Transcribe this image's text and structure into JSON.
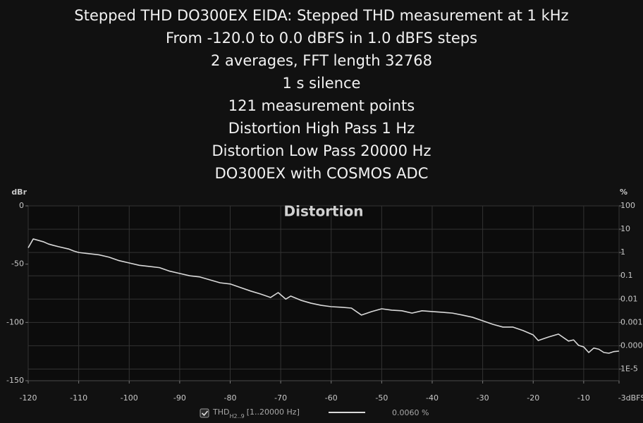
{
  "chart_data": {
    "type": "line",
    "title_lines": [
      "Stepped THD DO300EX EIDA: Stepped THD measurement at 1 kHz",
      "From -120.0 to 0.0 dBFS in 1.0 dBFS steps",
      "2 averages, FFT length 32768",
      "1 s silence",
      "121 measurement points",
      "Distortion High Pass 1 Hz",
      "Distortion Low Pass 20000 Hz",
      "DO300EX with COSMOS ADC"
    ],
    "plot_title": "Distortion",
    "y_label": "dBr",
    "y2_label": "%",
    "xlim": [
      -120,
      -3
    ],
    "xticks": [
      -120,
      -110,
      -100,
      -90,
      -80,
      -70,
      -60,
      -50,
      -40,
      -30,
      -20,
      -10,
      {
        "value": -3,
        "label": "-3dBFS"
      }
    ],
    "ylim": [
      -150,
      0
    ],
    "yticks": [
      -150,
      -100,
      -50,
      0
    ],
    "y2lim": [
      3.1623e-06,
      100
    ],
    "y2_log": true,
    "y2ticks": [
      100,
      10,
      1,
      0.1,
      0.01,
      0.001,
      0.0001,
      {
        "value": 1e-05,
        "label": "1E-5"
      }
    ],
    "grid": true,
    "series": [
      {
        "name": "THD",
        "name_subscript": "H2..9",
        "name_suffix": "[1..20000 Hz]",
        "legend_value": "0.0060 %",
        "color": "#d9d9d9",
        "x": [
          -120,
          -119,
          -118,
          -117,
          -116,
          -115,
          -114,
          -112,
          -111,
          -110,
          -108,
          -106,
          -104,
          -102,
          -100,
          -98,
          -96,
          -94,
          -92,
          -90,
          -88,
          -86,
          -84,
          -82,
          -80,
          -78,
          -76,
          -74,
          -72,
          -70.5,
          -69,
          -68,
          -66,
          -64,
          -62,
          -60,
          -58,
          -56,
          -54,
          -52,
          -50,
          -48,
          -46,
          -44,
          -42,
          -40,
          -38,
          -36,
          -34,
          -32,
          -30,
          -28,
          -26,
          -24,
          -22,
          -20,
          -19,
          -17,
          -15,
          -13,
          -12,
          -11,
          -10,
          -9,
          -8,
          -7,
          -6,
          -5,
          -4,
          -3
        ],
        "values": [
          -36,
          -28.4,
          -29.6,
          -30.8,
          -32.7,
          -33.9,
          -35,
          -37,
          -38.7,
          -40,
          -41,
          -42,
          -44,
          -47,
          -49,
          -51,
          -52,
          -53,
          -56,
          -58,
          -60,
          -61,
          -63.5,
          -66,
          -67,
          -70,
          -73,
          -75.6,
          -78.6,
          -74.4,
          -80,
          -77.4,
          -81,
          -83.5,
          -85.3,
          -86.5,
          -87,
          -87.7,
          -93.7,
          -90.7,
          -88.3,
          -89.5,
          -90,
          -92,
          -90,
          -90.7,
          -91.3,
          -92,
          -93.7,
          -95.6,
          -98.6,
          -101.6,
          -104,
          -104,
          -107,
          -110.7,
          -115.5,
          -112.6,
          -110,
          -116,
          -115,
          -119.7,
          -121,
          -125.8,
          -122,
          -123,
          -125.8,
          -126.4,
          -125,
          -124.6
        ]
      }
    ]
  }
}
